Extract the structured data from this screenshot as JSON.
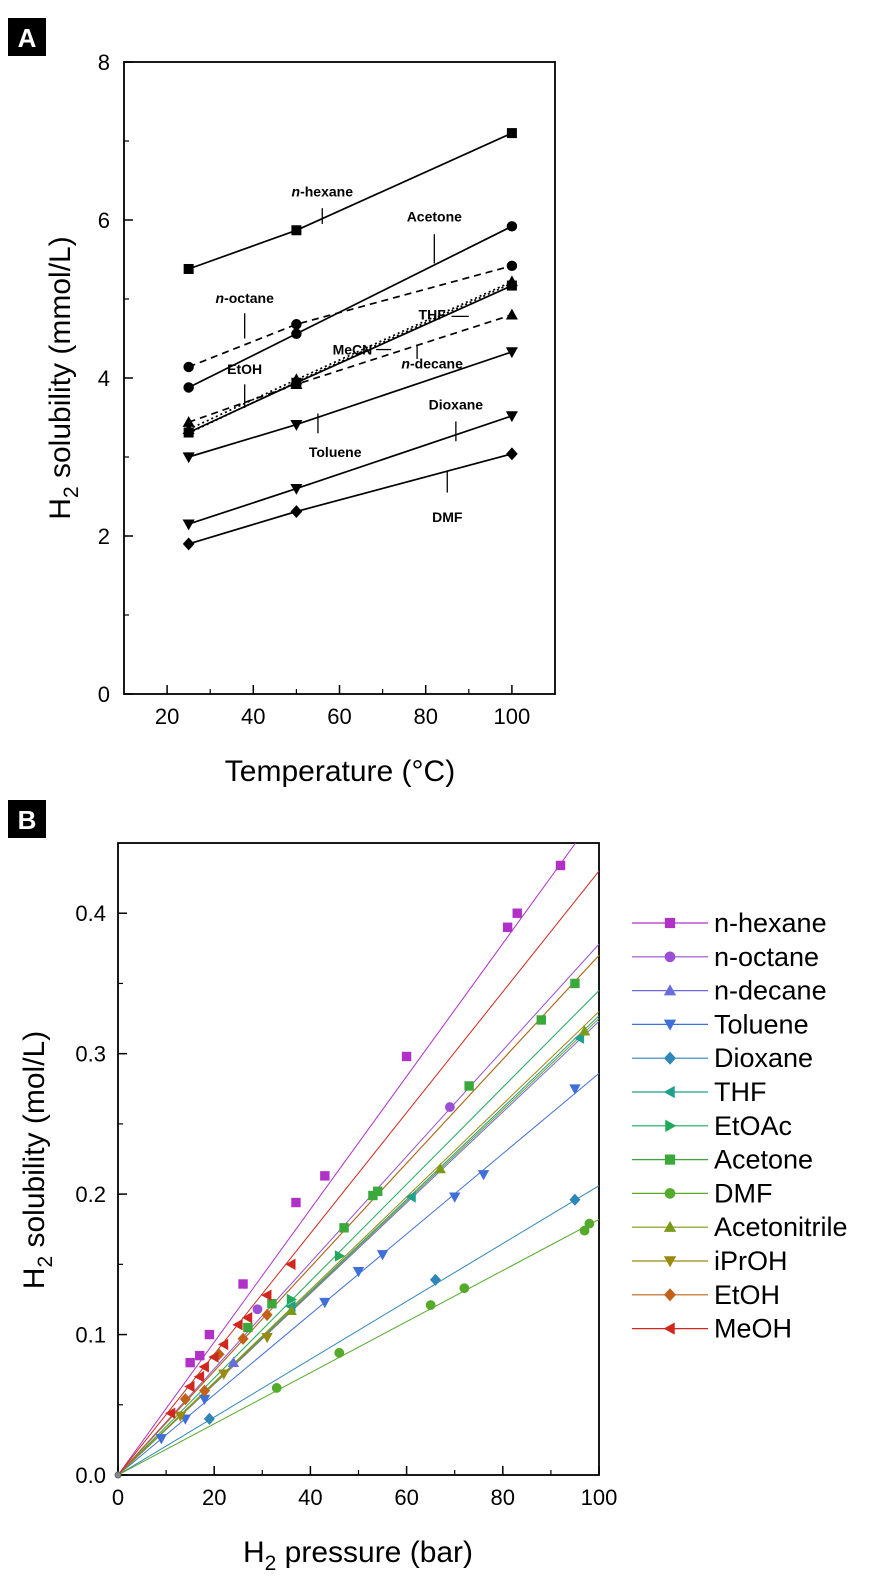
{
  "chart_data": [
    {
      "panel_label": "A",
      "type": "line",
      "xlabel": "Temperature (°C)",
      "ylabel_main": "H",
      "ylabel_sub": "2",
      "ylabel_rest": " solubility (mmol/L)",
      "xlim": [
        10,
        110
      ],
      "ylim": [
        0,
        8
      ],
      "xticks": [
        "20",
        "40",
        "60",
        "80",
        "100"
      ],
      "yticks": [
        "0",
        "2",
        "4",
        "6",
        "8"
      ],
      "x": [
        25,
        50,
        100
      ],
      "series": [
        {
          "name": "n-hexane",
          "label_prefix": "n",
          "label_rest": "-hexane",
          "values": [
            5.38,
            5.87,
            7.1
          ],
          "marker": "square",
          "dash": "solid",
          "label_at": [
            56,
            6.3
          ],
          "leader": [
            [
              56,
              6.15
            ],
            [
              56,
              5.95
            ]
          ]
        },
        {
          "name": "Acetone",
          "label_prefix": "",
          "label_rest": "Acetone",
          "values": [
            3.88,
            4.56,
            5.92
          ],
          "marker": "circle",
          "dash": "solid",
          "label_at": [
            82,
            5.98
          ],
          "leader": [
            [
              82,
              5.82
            ],
            [
              82,
              5.45
            ]
          ]
        },
        {
          "name": "n-octane",
          "label_prefix": "n",
          "label_rest": "-octane",
          "values": [
            4.14,
            4.68,
            5.42
          ],
          "marker": "circle",
          "dash": "dash",
          "label_at": [
            38,
            4.95
          ],
          "leader": [
            [
              38,
              4.82
            ],
            [
              38,
              4.5
            ]
          ]
        },
        {
          "name": "THF",
          "label_prefix": "",
          "label_rest": "THF",
          "values": [
            3.35,
            3.98,
            5.22
          ],
          "marker": "triangle-up",
          "dash": "dot",
          "label_at": [
            81.5,
            4.74
          ],
          "leader": [
            [
              86,
              4.78
            ],
            [
              90,
              4.78
            ]
          ]
        },
        {
          "name": "MeCN",
          "label_prefix": "",
          "label_rest": "MeCN",
          "values": [
            3.31,
            3.94,
            5.17
          ],
          "marker": "square",
          "dash": "solid",
          "label_at": [
            63,
            4.3
          ],
          "leader": [
            [
              68.5,
              4.36
            ],
            [
              72,
              4.36
            ]
          ]
        },
        {
          "name": "n-decane",
          "label_prefix": "n",
          "label_rest": "-decane",
          "values": [
            3.44,
            3.92,
            4.8
          ],
          "marker": "triangle-up",
          "dash": "dash",
          "label_at": [
            81.5,
            4.12
          ],
          "leader": [
            [
              78,
              4.42
            ],
            [
              78,
              4.24
            ]
          ]
        },
        {
          "name": "EtOH",
          "label_prefix": "",
          "label_rest": "EtOH",
          "values": [
            3.3,
            3.95,
            5.2
          ],
          "marker": "none",
          "dash": "dot",
          "label_at": [
            38,
            4.05
          ],
          "leader": [
            [
              38,
              3.92
            ],
            [
              38,
              3.62
            ]
          ]
        },
        {
          "name": "Toluene",
          "label_prefix": "",
          "label_rest": "Toluene",
          "values": [
            3.0,
            3.41,
            4.33
          ],
          "marker": "triangle-down",
          "dash": "solid",
          "label_at": [
            59,
            3.0
          ],
          "leader": [
            [
              55,
              3.55
            ],
            [
              55,
              3.3
            ]
          ]
        },
        {
          "name": "Dioxane",
          "label_prefix": "",
          "label_rest": "Dioxane",
          "values": [
            2.15,
            2.6,
            3.52
          ],
          "marker": "triangle-down",
          "dash": "solid",
          "label_at": [
            87,
            3.6
          ],
          "leader": [
            [
              87,
              3.45
            ],
            [
              87,
              3.2
            ]
          ]
        },
        {
          "name": "DMF",
          "label_prefix": "",
          "label_rest": "DMF",
          "values": [
            1.9,
            2.31,
            3.04
          ],
          "marker": "diamond",
          "dash": "solid",
          "label_at": [
            85,
            2.18
          ],
          "leader": [
            [
              85,
              2.82
            ],
            [
              85,
              2.55
            ]
          ]
        }
      ]
    },
    {
      "panel_label": "B",
      "type": "line",
      "xlabel_main": "H",
      "xlabel_sub": "2",
      "xlabel_rest": " pressure (bar)",
      "ylabel_main": "H",
      "ylabel_sub": "2",
      "ylabel_rest": " solubility (mol/L)",
      "xlim": [
        0,
        100
      ],
      "ylim": [
        0,
        0.45
      ],
      "xticks": [
        "0",
        "20",
        "40",
        "60",
        "80",
        "100"
      ],
      "yticks": [
        "0.0",
        "0.1",
        "0.2",
        "0.3",
        "0.4"
      ],
      "legend_position": "right",
      "series": [
        {
          "name": "n-hexane",
          "color": "#b030c8",
          "marker": "square",
          "slope": 0.00473,
          "x": [
            15,
            17,
            19,
            26,
            37,
            43,
            60,
            81,
            83,
            92
          ],
          "y": [
            0.08,
            0.085,
            0.1,
            0.136,
            0.194,
            0.213,
            0.298,
            0.39,
            0.4,
            0.434
          ]
        },
        {
          "name": "n-octane",
          "color": "#9a4fd6",
          "marker": "circle",
          "slope": 0.00378,
          "x": [
            29,
            69
          ],
          "y": [
            0.118,
            0.262
          ]
        },
        {
          "name": "n-decane",
          "color": "#6b6be0",
          "marker": "triangle-up",
          "slope": 0.00323,
          "x": [
            24
          ],
          "y": [
            0.08
          ]
        },
        {
          "name": "Toluene",
          "color": "#3f6fd8",
          "marker": "triangle-down",
          "slope": 0.00286,
          "x": [
            9,
            14,
            18,
            43,
            50,
            55,
            70,
            76,
            95
          ],
          "y": [
            0.026,
            0.04,
            0.054,
            0.123,
            0.145,
            0.157,
            0.198,
            0.214,
            0.275
          ]
        },
        {
          "name": "Dioxane",
          "color": "#2f86b8",
          "marker": "diamond",
          "slope": 0.00206,
          "x": [
            19,
            66,
            95
          ],
          "y": [
            0.04,
            0.139,
            0.196
          ]
        },
        {
          "name": "THF",
          "color": "#1fa08c",
          "marker": "triangle-left",
          "slope": 0.00327,
          "x": [
            36,
            61,
            96
          ],
          "y": [
            0.12,
            0.198,
            0.311
          ]
        },
        {
          "name": "EtOAc",
          "color": "#1faa5a",
          "marker": "triangle-right",
          "slope": 0.00345,
          "x": [
            36,
            46
          ],
          "y": [
            0.125,
            0.156
          ]
        },
        {
          "name": "Acetone",
          "color": "#3aa83a",
          "marker": "square",
          "slope": 0.0037,
          "x": [
            27,
            32,
            47,
            53,
            54,
            73,
            88,
            95
          ],
          "y": [
            0.105,
            0.122,
            0.176,
            0.199,
            0.202,
            0.277,
            0.324,
            0.35
          ]
        },
        {
          "name": "DMF",
          "color": "#55aa2a",
          "marker": "circle",
          "slope": 0.00182,
          "x": [
            33,
            46,
            65,
            72,
            97,
            98
          ],
          "y": [
            0.062,
            0.087,
            0.121,
            0.133,
            0.174,
            0.179
          ]
        },
        {
          "name": "Acetonitrile",
          "color": "#7a9a1a",
          "marker": "triangle-up",
          "slope": 0.00325,
          "x": [
            36,
            67,
            97
          ],
          "y": [
            0.117,
            0.218,
            0.316
          ]
        },
        {
          "name": "iPrOH",
          "color": "#9a8a10",
          "marker": "triangle-down",
          "slope": 0.0033,
          "x": [
            13,
            22,
            31
          ],
          "y": [
            0.042,
            0.072,
            0.098
          ]
        },
        {
          "name": "EtOH",
          "color": "#c0621a",
          "marker": "diamond",
          "slope": 0.0037,
          "x": [
            14,
            18,
            21,
            26,
            31
          ],
          "y": [
            0.054,
            0.06,
            0.086,
            0.097,
            0.114
          ]
        },
        {
          "name": "MeOH",
          "color": "#d0281e",
          "marker": "triangle-left",
          "slope": 0.0043,
          "x": [
            11,
            15,
            17,
            18,
            20,
            22,
            25,
            27,
            31,
            36
          ],
          "y": [
            0.044,
            0.063,
            0.07,
            0.077,
            0.084,
            0.093,
            0.107,
            0.112,
            0.128,
            0.15
          ]
        }
      ]
    }
  ]
}
